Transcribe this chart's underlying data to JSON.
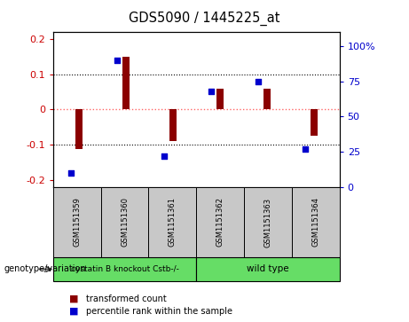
{
  "title": "GDS5090 / 1445225_at",
  "samples": [
    "GSM1151359",
    "GSM1151360",
    "GSM1151361",
    "GSM1151362",
    "GSM1151363",
    "GSM1151364"
  ],
  "bar_values": [
    -0.113,
    0.15,
    -0.09,
    0.06,
    0.06,
    -0.075
  ],
  "dot_values": [
    10,
    90,
    22,
    68,
    75,
    27
  ],
  "ylim_left": [
    -0.22,
    0.22
  ],
  "ylim_right": [
    0,
    110
  ],
  "bar_color": "#8B0000",
  "dot_color": "#0000CD",
  "zero_line_color": "#FF6666",
  "grid_color": "#000000",
  "group1_label": "cystatin B knockout Cstb-/-",
  "group2_label": "wild type",
  "group1_color": "#66DD66",
  "group2_color": "#66DD66",
  "genotype_label": "genotype/variation",
  "legend1": "transformed count",
  "legend2": "percentile rank within the sample",
  "bg_color": "#FFFFFF",
  "tick_color_left": "#CC0000",
  "tick_color_right": "#0000CC",
  "yticks_left": [
    -0.2,
    -0.1,
    0.0,
    0.1,
    0.2
  ],
  "ytick_labels_left": [
    "-0.2",
    "-0.1",
    "0",
    "0.1",
    "0.2"
  ],
  "yticks_right": [
    0,
    25,
    50,
    75,
    100
  ],
  "ytick_labels_right": [
    "0",
    "25",
    "50",
    "75",
    "100%"
  ],
  "sample_box_color": "#C8C8C8",
  "bar_width": 0.15
}
